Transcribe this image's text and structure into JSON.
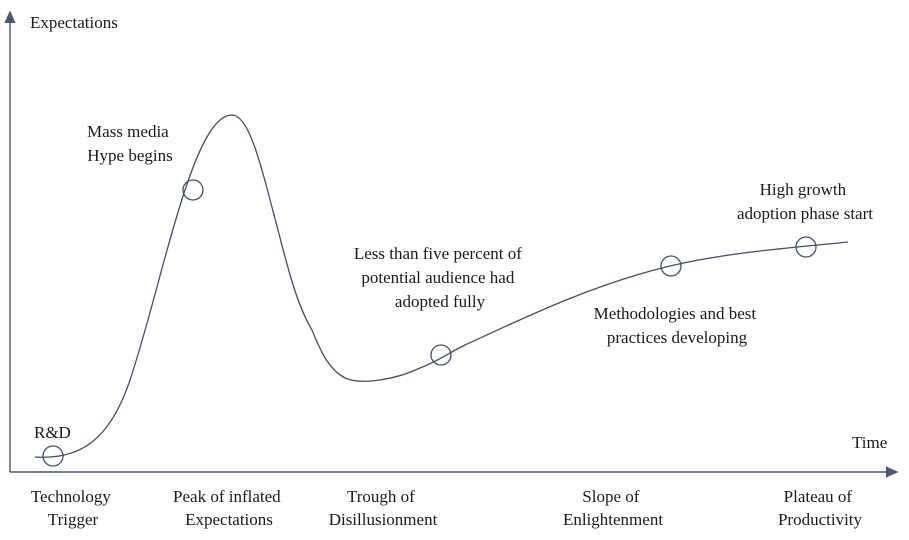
{
  "axes": {
    "y_label": "Expectations",
    "x_label": "Time"
  },
  "phases": [
    [
      "Technology",
      "Trigger"
    ],
    [
      "Peak of inflated",
      "Expectations"
    ],
    [
      "Trough of",
      "Disillusionment"
    ],
    [
      "Slope of",
      "Enlightenment"
    ],
    [
      "Plateau of",
      "Productivity"
    ]
  ],
  "annotations": {
    "rd": "R&D",
    "mass_media": [
      "Mass media",
      "Hype begins"
    ],
    "less_than": [
      "Less than five percent of",
      "potential audience had",
      "adopted fully"
    ],
    "methodologies": [
      "Methodologies and best",
      "practices developing"
    ],
    "high_growth": [
      "High growth",
      "adoption phase start"
    ]
  },
  "colors": {
    "curve": "#3e4f66",
    "axis": "#4a5a6e",
    "text": "#1a1a1a"
  }
}
